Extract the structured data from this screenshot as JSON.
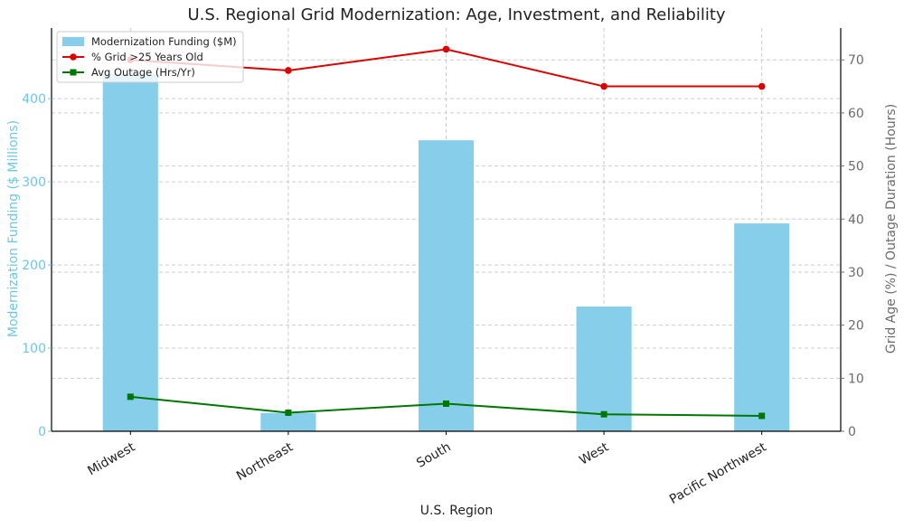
{
  "chart_data": {
    "type": "bar+line",
    "title": "U.S. Regional Grid Modernization: Age, Investment, and Reliability",
    "xlabel": "U.S. Region",
    "ylabel_left": "Modernization Funding ($ Millions)",
    "ylabel_right": "Grid Age (%) / Outage Duration (Hours)",
    "categories": [
      "Midwest",
      "Northeast",
      "South",
      "West",
      "Pacific Northwest"
    ],
    "ylim_left": [
      0,
      485
    ],
    "yticks_left": [
      0,
      100,
      200,
      300,
      400
    ],
    "ylim_right": [
      0,
      76
    ],
    "yticks_right": [
      0,
      10,
      20,
      30,
      40,
      50,
      60,
      70
    ],
    "grid": true,
    "legend_position": "top-left",
    "series": [
      {
        "name": "Modernization Funding ($M)",
        "type": "bar",
        "axis": "left",
        "values": [
          430,
          22,
          350,
          150,
          250
        ],
        "color": "#87ceeb"
      },
      {
        "name": "% Grid >25 Years Old",
        "type": "line",
        "axis": "right",
        "marker": "circle",
        "values": [
          70,
          68,
          72,
          65,
          65
        ],
        "color": "#dd0000"
      },
      {
        "name": "Avg Outage (Hrs/Yr)",
        "type": "line",
        "axis": "right",
        "marker": "square",
        "values": [
          6.5,
          3.5,
          5.2,
          3.2,
          2.9
        ],
        "color": "#007700"
      }
    ],
    "left_axis_color": "#6ec6e6",
    "right_axis_color": "#6b6b6b"
  }
}
